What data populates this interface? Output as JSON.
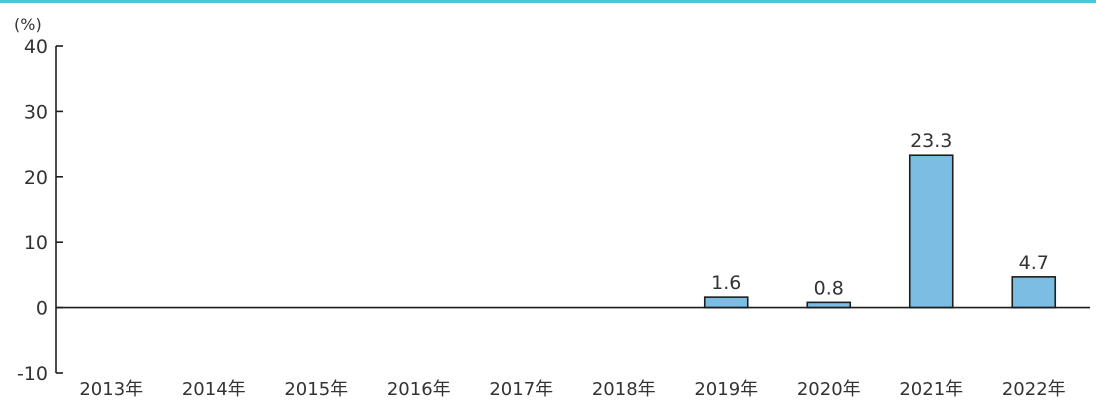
{
  "colors": {
    "top_rule": "#4fc3dd",
    "bar_fill": "#7bbde3",
    "bar_stroke": "#1e1e1e",
    "axis": "#1e1e1e"
  },
  "chart_data": {
    "type": "bar",
    "title": "",
    "xlabel": "",
    "ylabel": "(%)",
    "ylim": [
      -10,
      40
    ],
    "yticks": [
      -10,
      0,
      10,
      20,
      30,
      40
    ],
    "grid": false,
    "legend": "none",
    "categories": [
      "2013年",
      "2014年",
      "2015年",
      "2016年",
      "2017年",
      "2018年",
      "2019年",
      "2020年",
      "2021年",
      "2022年"
    ],
    "values": [
      null,
      null,
      null,
      null,
      null,
      null,
      1.6,
      0.8,
      23.3,
      4.7
    ],
    "data_labels": [
      "",
      "",
      "",
      "",
      "",
      "",
      "1.6",
      "0.8",
      "23.3",
      "4.7"
    ]
  }
}
